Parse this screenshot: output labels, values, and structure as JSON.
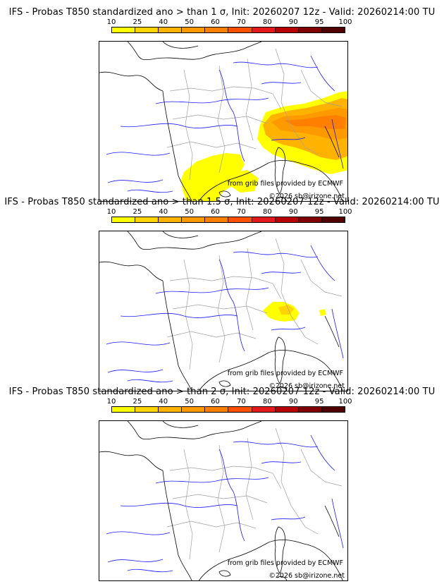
{
  "legend": {
    "ticks": [
      "10",
      "25",
      "40",
      "50",
      "60",
      "70",
      "80",
      "90",
      "95",
      "100"
    ],
    "colors": [
      "#ffff00",
      "#ffd400",
      "#ffb300",
      "#ff9900",
      "#ff7f00",
      "#ff5000",
      "#e31a1c",
      "#b80000",
      "#800000",
      "#500000"
    ]
  },
  "map_colors": {
    "coast": "#000000",
    "rivers": "#1a1aff",
    "borders": "#a0a0a0"
  },
  "panels": [
    {
      "title": "IFS - Probas T850  standardized ano > than 1 σ, Init: 20260207 12z - Valid: 20260214:00 TU",
      "credit_source": "from grib files provided by ECMWF",
      "credit_copyright": "©2026 sb@irizone.net",
      "sigma": 1.0
    },
    {
      "title": "IFS - Probas T850  standardized ano > than 1.5 σ, Init: 20260207 12z - Valid: 20260214:00 TU",
      "credit_source": "from grib files provided by ECMWF",
      "credit_copyright": "©2026 sb@irizone.net",
      "sigma": 1.5
    },
    {
      "title": "IFS - Probas T850  standardized ano > than 2 σ, Init: 20260207 12z - Valid: 20260214:00 TU",
      "credit_source": "from grib files provided by ECMWF",
      "credit_copyright": "©2026 sb@irizone.net",
      "sigma": 2.0
    }
  ]
}
